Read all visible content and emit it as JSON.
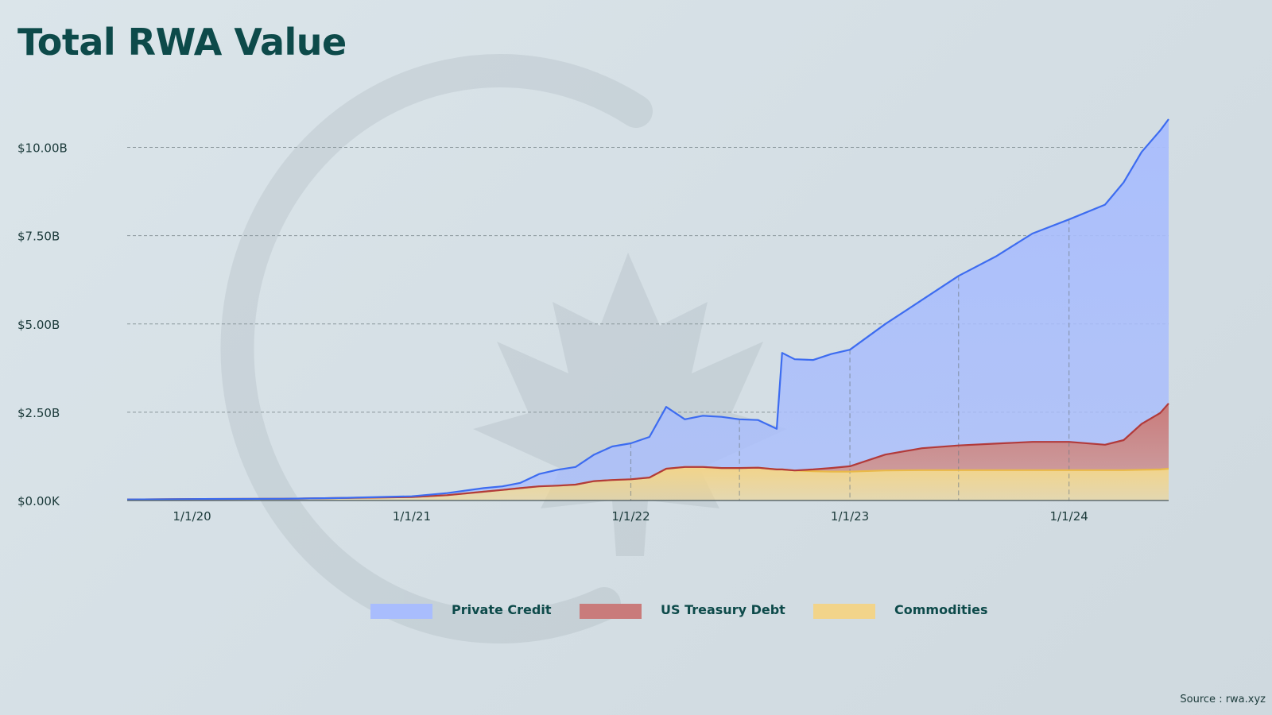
{
  "chart_data": {
    "type": "area",
    "title": "Total RWA Value",
    "xlabel": "",
    "ylabel": "",
    "x_ticks": [
      "1/1/20",
      "1/1/21",
      "1/1/22",
      "1/1/23",
      "1/1/24"
    ],
    "y_ticks": [
      "$0.00K",
      "$2.50B",
      "$5.00B",
      "$7.50B",
      "$10.00B"
    ],
    "ylim": [
      0,
      10.8
    ],
    "y_unit": "$B",
    "stacked": true,
    "grid": true,
    "legend_position": "bottom",
    "x": [
      "2019-09-15",
      "2020-01-01",
      "2020-06-01",
      "2020-09-01",
      "2021-01-01",
      "2021-03-01",
      "2021-05-01",
      "2021-06-01",
      "2021-07-01",
      "2021-08-01",
      "2021-09-01",
      "2021-10-01",
      "2021-11-01",
      "2021-12-01",
      "2022-01-01",
      "2022-02-01",
      "2022-03-01",
      "2022-04-01",
      "2022-05-01",
      "2022-06-01",
      "2022-07-01",
      "2022-08-01",
      "2022-09-01",
      "2022-09-10",
      "2022-10-01",
      "2022-11-01",
      "2022-12-01",
      "2023-01-01",
      "2023-03-01",
      "2023-05-01",
      "2023-07-01",
      "2023-09-01",
      "2023-11-01",
      "2024-01-01",
      "2024-03-01",
      "2024-04-01",
      "2024-05-01",
      "2024-06-01",
      "2024-06-15"
    ],
    "series": [
      {
        "name": "Commodities",
        "color": "#f2d48a",
        "line_color": "#e9b949",
        "values": [
          0.03,
          0.04,
          0.05,
          0.07,
          0.1,
          0.15,
          0.25,
          0.3,
          0.35,
          0.4,
          0.42,
          0.45,
          0.55,
          0.58,
          0.6,
          0.65,
          0.9,
          0.95,
          0.95,
          0.92,
          0.92,
          0.93,
          0.88,
          0.88,
          0.85,
          0.83,
          0.82,
          0.82,
          0.85,
          0.86,
          0.86,
          0.86,
          0.86,
          0.86,
          0.86,
          0.86,
          0.87,
          0.88,
          0.9
        ]
      },
      {
        "name": "US Treasury Debt",
        "color": "#c97b7b",
        "line_color": "#b23a3a",
        "values": [
          0,
          0,
          0,
          0,
          0,
          0,
          0,
          0,
          0,
          0,
          0,
          0,
          0,
          0,
          0,
          0,
          0,
          0,
          0,
          0,
          0,
          0,
          0,
          0,
          0,
          0.05,
          0.1,
          0.15,
          0.45,
          0.62,
          0.7,
          0.75,
          0.8,
          0.8,
          0.72,
          0.85,
          1.3,
          1.6,
          1.85
        ]
      },
      {
        "name": "Private Credit",
        "color": "#a9bdfd",
        "line_color": "#3d6cf0",
        "values": [
          0,
          0,
          0,
          0,
          0.02,
          0.06,
          0.1,
          0.1,
          0.15,
          0.35,
          0.45,
          0.5,
          0.75,
          0.95,
          1.02,
          1.15,
          1.75,
          1.35,
          1.45,
          1.45,
          1.38,
          1.35,
          1.15,
          3.3,
          3.15,
          3.1,
          3.23,
          3.3,
          3.7,
          4.2,
          4.8,
          5.3,
          5.9,
          6.3,
          6.8,
          7.3,
          7.7,
          8.0,
          8.05
        ]
      }
    ]
  },
  "legend": [
    {
      "label": "Private Credit",
      "color": "#a9bdfd"
    },
    {
      "label": "US Treasury Debt",
      "color": "#c97b7b"
    },
    {
      "label": "Commodities",
      "color": "#f2d48a"
    }
  ],
  "source": "Source : rwa.xyz"
}
